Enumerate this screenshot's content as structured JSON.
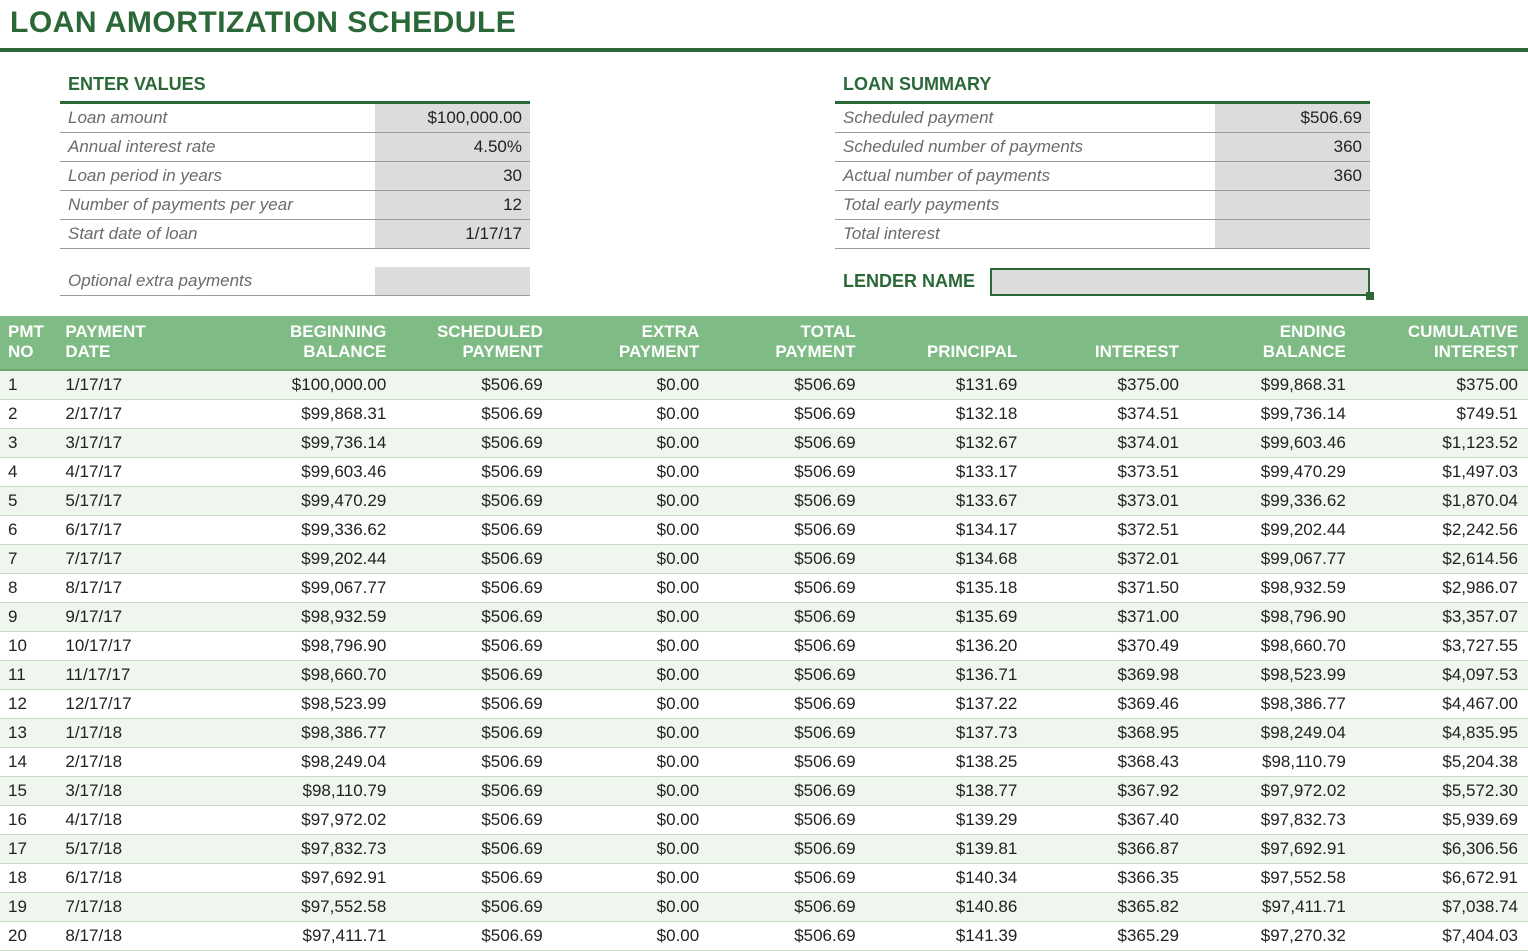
{
  "title": "LOAN AMORTIZATION SCHEDULE",
  "colors": {
    "brand_green": "#2b6838",
    "header_green": "#7fbb84",
    "row_alt": "#eef6ee",
    "input_gray": "#dcdcdc",
    "label_gray": "#6b6b6b"
  },
  "enter_values": {
    "heading": "ENTER VALUES",
    "rows": [
      {
        "label": "Loan amount",
        "value": "$100,000.00"
      },
      {
        "label": "Annual interest rate",
        "value": "4.50%"
      },
      {
        "label": "Loan period in years",
        "value": "30"
      },
      {
        "label": "Number of payments per year",
        "value": "12"
      },
      {
        "label": "Start date of loan",
        "value": "1/17/17"
      }
    ],
    "extra": {
      "label": "Optional extra payments",
      "value": ""
    }
  },
  "loan_summary": {
    "heading": "LOAN SUMMARY",
    "rows": [
      {
        "label": "Scheduled payment",
        "value": "$506.69"
      },
      {
        "label": "Scheduled number of payments",
        "value": "360"
      },
      {
        "label": "Actual number of payments",
        "value": "360"
      },
      {
        "label": "Total early payments",
        "value": ""
      },
      {
        "label": "Total interest",
        "value": ""
      }
    ],
    "lender_label": "LENDER NAME",
    "lender_value": ""
  },
  "schedule": {
    "columns": [
      "PMT NO",
      "PAYMENT DATE",
      "BEGINNING BALANCE",
      "SCHEDULED PAYMENT",
      "EXTRA PAYMENT",
      "TOTAL PAYMENT",
      "PRINCIPAL",
      "INTEREST",
      "ENDING BALANCE",
      "CUMULATIVE INTEREST"
    ],
    "column_classes": [
      "c-pmtno",
      "c-date",
      "c-begin",
      "c-sched",
      "c-extra",
      "c-total",
      "c-princ",
      "c-int",
      "c-end",
      "c-cum"
    ],
    "header_breaks": {
      "0": [
        "PMT",
        "NO"
      ],
      "1": [
        "PAYMENT",
        "DATE"
      ],
      "2": [
        "BEGINNING",
        "BALANCE"
      ],
      "3": [
        "SCHEDULED",
        "PAYMENT"
      ],
      "4": [
        "EXTRA",
        "PAYMENT"
      ],
      "5": [
        "TOTAL",
        "PAYMENT"
      ],
      "6": [
        "",
        "PRINCIPAL"
      ],
      "7": [
        "",
        "INTEREST"
      ],
      "8": [
        "ENDING",
        "BALANCE"
      ],
      "9": [
        "CUMULATIVE",
        "INTEREST"
      ]
    },
    "rows": [
      [
        "1",
        "1/17/17",
        "$100,000.00",
        "$506.69",
        "$0.00",
        "$506.69",
        "$131.69",
        "$375.00",
        "$99,868.31",
        "$375.00"
      ],
      [
        "2",
        "2/17/17",
        "$99,868.31",
        "$506.69",
        "$0.00",
        "$506.69",
        "$132.18",
        "$374.51",
        "$99,736.14",
        "$749.51"
      ],
      [
        "3",
        "3/17/17",
        "$99,736.14",
        "$506.69",
        "$0.00",
        "$506.69",
        "$132.67",
        "$374.01",
        "$99,603.46",
        "$1,123.52"
      ],
      [
        "4",
        "4/17/17",
        "$99,603.46",
        "$506.69",
        "$0.00",
        "$506.69",
        "$133.17",
        "$373.51",
        "$99,470.29",
        "$1,497.03"
      ],
      [
        "5",
        "5/17/17",
        "$99,470.29",
        "$506.69",
        "$0.00",
        "$506.69",
        "$133.67",
        "$373.01",
        "$99,336.62",
        "$1,870.04"
      ],
      [
        "6",
        "6/17/17",
        "$99,336.62",
        "$506.69",
        "$0.00",
        "$506.69",
        "$134.17",
        "$372.51",
        "$99,202.44",
        "$2,242.56"
      ],
      [
        "7",
        "7/17/17",
        "$99,202.44",
        "$506.69",
        "$0.00",
        "$506.69",
        "$134.68",
        "$372.01",
        "$99,067.77",
        "$2,614.56"
      ],
      [
        "8",
        "8/17/17",
        "$99,067.77",
        "$506.69",
        "$0.00",
        "$506.69",
        "$135.18",
        "$371.50",
        "$98,932.59",
        "$2,986.07"
      ],
      [
        "9",
        "9/17/17",
        "$98,932.59",
        "$506.69",
        "$0.00",
        "$506.69",
        "$135.69",
        "$371.00",
        "$98,796.90",
        "$3,357.07"
      ],
      [
        "10",
        "10/17/17",
        "$98,796.90",
        "$506.69",
        "$0.00",
        "$506.69",
        "$136.20",
        "$370.49",
        "$98,660.70",
        "$3,727.55"
      ],
      [
        "11",
        "11/17/17",
        "$98,660.70",
        "$506.69",
        "$0.00",
        "$506.69",
        "$136.71",
        "$369.98",
        "$98,523.99",
        "$4,097.53"
      ],
      [
        "12",
        "12/17/17",
        "$98,523.99",
        "$506.69",
        "$0.00",
        "$506.69",
        "$137.22",
        "$369.46",
        "$98,386.77",
        "$4,467.00"
      ],
      [
        "13",
        "1/17/18",
        "$98,386.77",
        "$506.69",
        "$0.00",
        "$506.69",
        "$137.73",
        "$368.95",
        "$98,249.04",
        "$4,835.95"
      ],
      [
        "14",
        "2/17/18",
        "$98,249.04",
        "$506.69",
        "$0.00",
        "$506.69",
        "$138.25",
        "$368.43",
        "$98,110.79",
        "$5,204.38"
      ],
      [
        "15",
        "3/17/18",
        "$98,110.79",
        "$506.69",
        "$0.00",
        "$506.69",
        "$138.77",
        "$367.92",
        "$97,972.02",
        "$5,572.30"
      ],
      [
        "16",
        "4/17/18",
        "$97,972.02",
        "$506.69",
        "$0.00",
        "$506.69",
        "$139.29",
        "$367.40",
        "$97,832.73",
        "$5,939.69"
      ],
      [
        "17",
        "5/17/18",
        "$97,832.73",
        "$506.69",
        "$0.00",
        "$506.69",
        "$139.81",
        "$366.87",
        "$97,692.91",
        "$6,306.56"
      ],
      [
        "18",
        "6/17/18",
        "$97,692.91",
        "$506.69",
        "$0.00",
        "$506.69",
        "$140.34",
        "$366.35",
        "$97,552.58",
        "$6,672.91"
      ],
      [
        "19",
        "7/17/18",
        "$97,552.58",
        "$506.69",
        "$0.00",
        "$506.69",
        "$140.86",
        "$365.82",
        "$97,411.71",
        "$7,038.74"
      ],
      [
        "20",
        "8/17/18",
        "$97,411.71",
        "$506.69",
        "$0.00",
        "$506.69",
        "$141.39",
        "$365.29",
        "$97,270.32",
        "$7,404.03"
      ]
    ]
  }
}
